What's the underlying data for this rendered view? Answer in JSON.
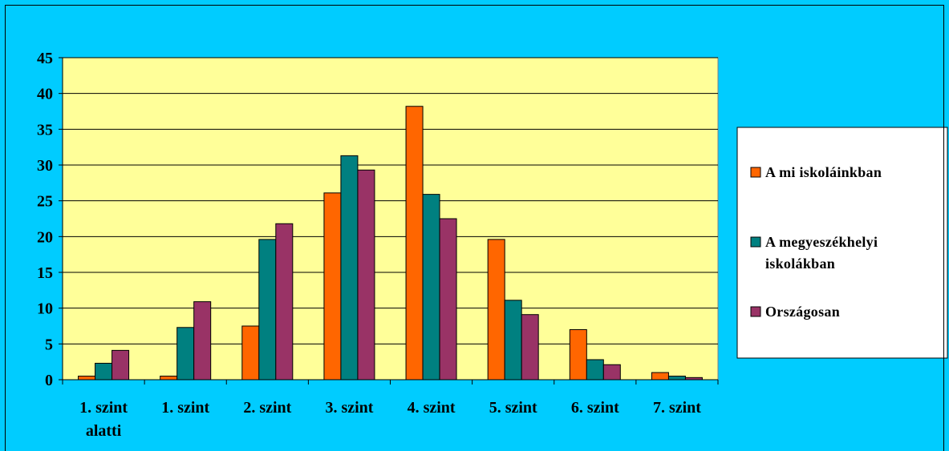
{
  "chart_data": {
    "type": "bar",
    "categories": [
      [
        "1. szint",
        "alatti"
      ],
      [
        "1. szint"
      ],
      [
        "2. szint"
      ],
      [
        "3. szint"
      ],
      [
        "4. szint"
      ],
      [
        "5. szint"
      ],
      [
        "6. szint"
      ],
      [
        "7. szint"
      ]
    ],
    "series": [
      {
        "name": "A mi iskoláinkban",
        "color": "#ff6600",
        "values": [
          0.5,
          0.5,
          7.5,
          26.1,
          38.2,
          19.6,
          7.0,
          1.0
        ]
      },
      {
        "name": "A megyeszékhelyi iskolákban",
        "color": "#008080",
        "values": [
          2.3,
          7.3,
          19.6,
          31.3,
          25.9,
          11.1,
          2.8,
          0.5
        ]
      },
      {
        "name": "Országosan",
        "color": "#993366",
        "values": [
          4.1,
          10.9,
          21.8,
          29.3,
          22.5,
          9.1,
          2.1,
          0.3
        ]
      }
    ],
    "ylim": [
      0,
      45
    ],
    "yticks": [
      0,
      5,
      10,
      15,
      20,
      25,
      30,
      35,
      40,
      45
    ],
    "grid": true,
    "plot_background": "#ffff99",
    "chart_background": "#00ccff",
    "legend_position": "right"
  }
}
